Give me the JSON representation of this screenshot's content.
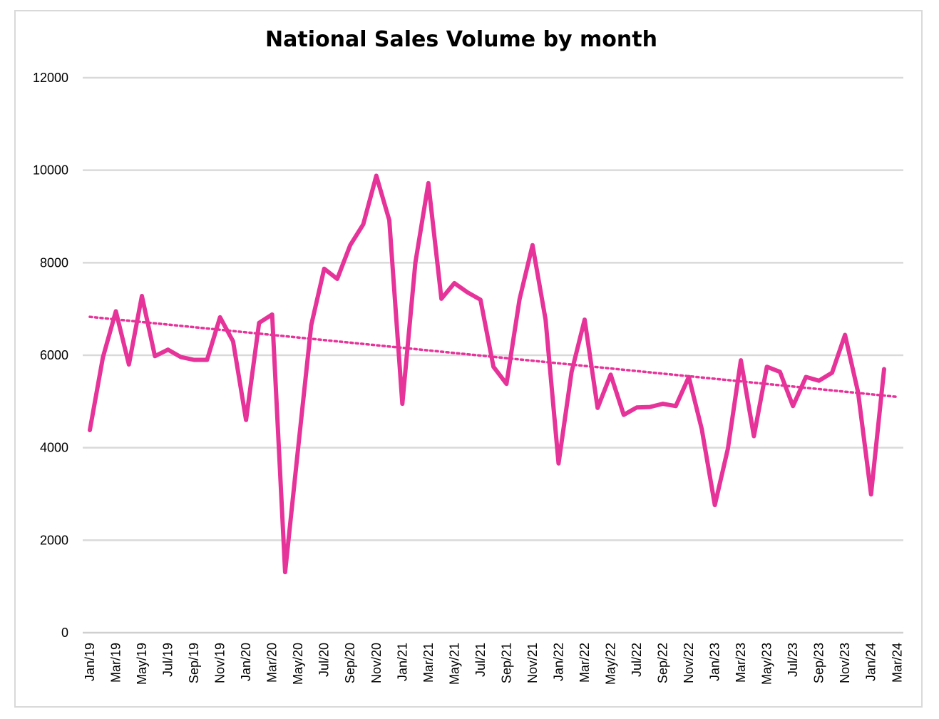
{
  "chart_data": {
    "type": "line",
    "title": "National Sales Volume by month",
    "xlabel": "",
    "ylabel": "",
    "ylim": [
      0,
      12000
    ],
    "y_ticks": [
      0,
      2000,
      4000,
      6000,
      8000,
      10000,
      12000
    ],
    "grid": true,
    "legend": "none",
    "x_tick_labels": [
      "Jan/19",
      "Mar/19",
      "May/19",
      "Jul/19",
      "Sep/19",
      "Nov/19",
      "Jan/20",
      "Mar/20",
      "May/20",
      "Jul/20",
      "Sep/20",
      "Nov/20",
      "Jan/21",
      "Mar/21",
      "May/21",
      "Jul/21",
      "Sep/21",
      "Nov/21",
      "Jan/22",
      "Mar/22",
      "May/22",
      "Jul/22",
      "Sep/22",
      "Nov/22",
      "Jan/23",
      "Mar/23",
      "May/23",
      "Jul/23",
      "Sep/23",
      "Nov/23",
      "Jan/24",
      "Mar/24"
    ],
    "series": [
      {
        "name": "National Sales Volume",
        "color": "#e6339a",
        "values": [
          4380,
          5950,
          6950,
          5800,
          7280,
          5980,
          6120,
          5960,
          5900,
          5900,
          6820,
          6300,
          4600,
          6700,
          6880,
          1310,
          4000,
          6650,
          7870,
          7650,
          8380,
          8830,
          9880,
          8920,
          4950,
          8000,
          9720,
          7220,
          7560,
          7360,
          7200,
          5750,
          5380,
          7210,
          8380,
          6770,
          3660,
          5640,
          6770,
          4860,
          5580,
          4710,
          4870,
          4880,
          4950,
          4900,
          5530,
          4400,
          2760,
          3980,
          5890,
          4250,
          5750,
          5640,
          4900,
          5530,
          5450,
          5620,
          6440,
          5200,
          2990,
          5700
        ]
      },
      {
        "name": "Linear trend",
        "color": "#e6339a",
        "style": "dotted",
        "start_value": 6830,
        "end_value": 5100
      }
    ]
  }
}
